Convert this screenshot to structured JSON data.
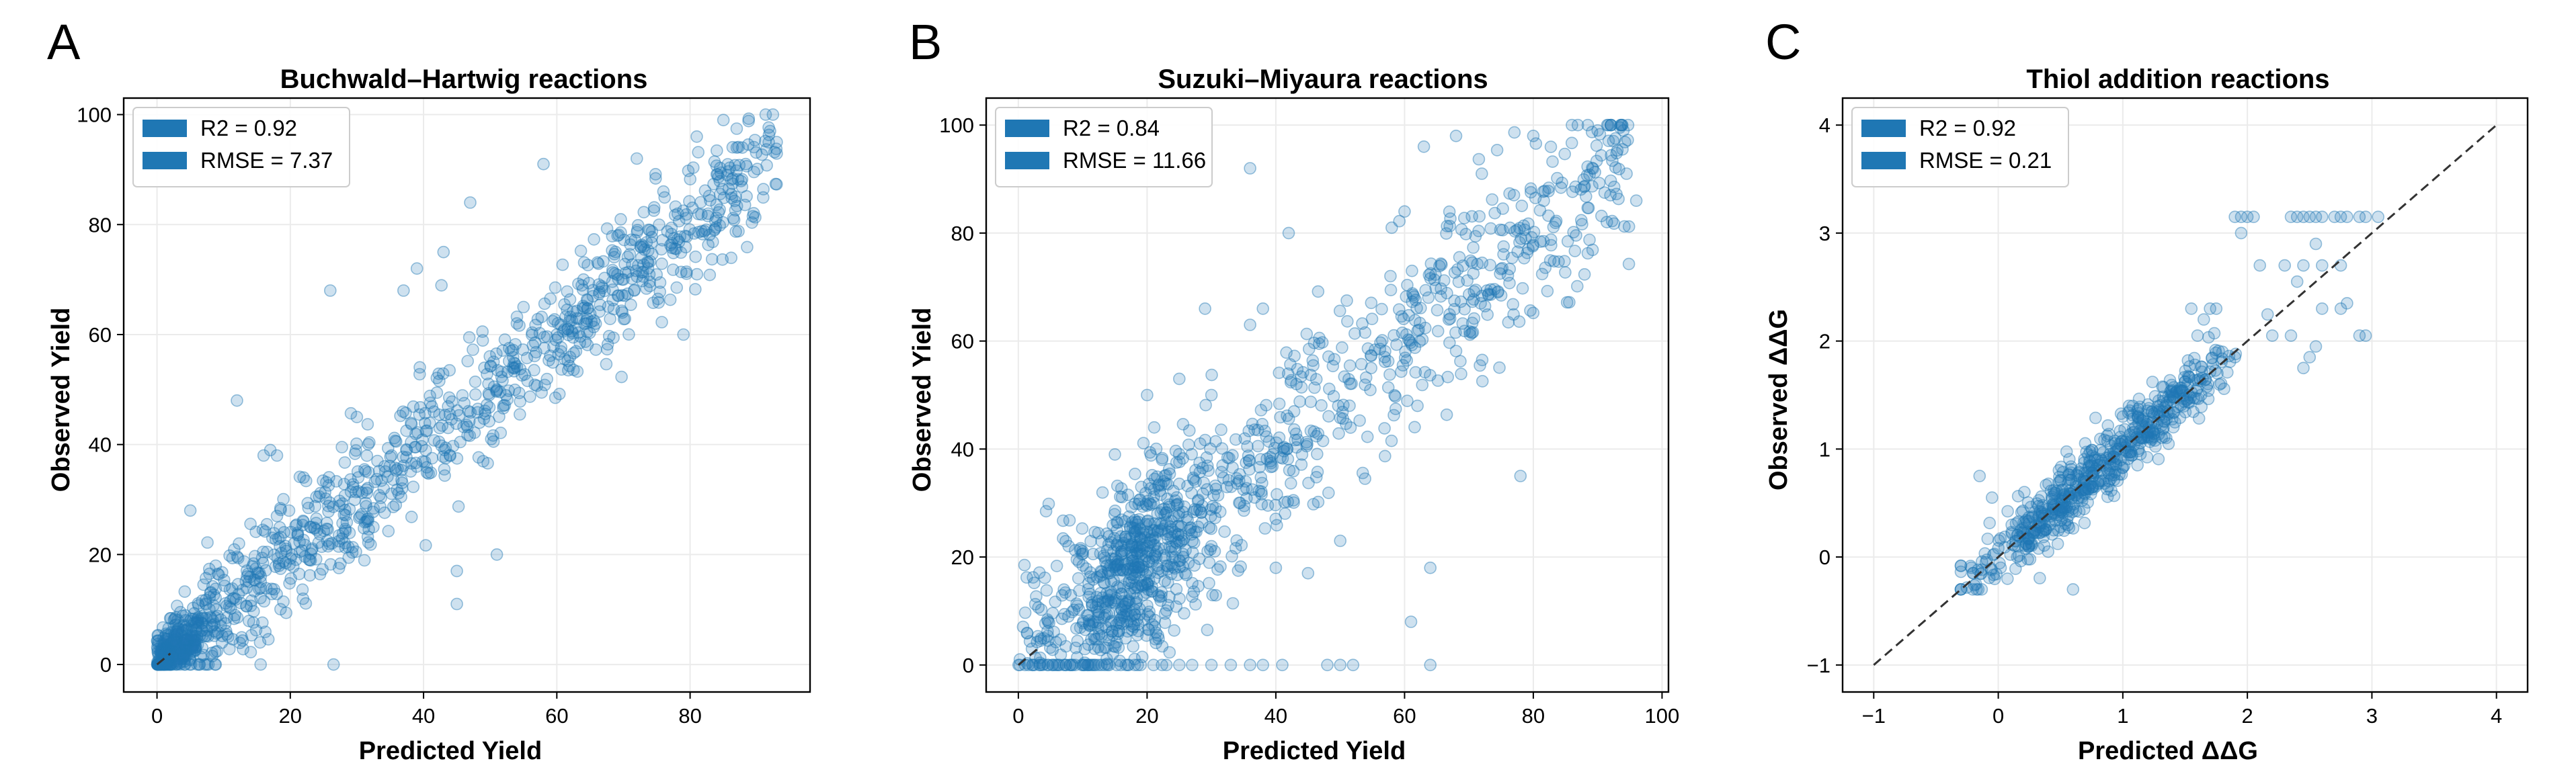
{
  "chart_data": [
    {
      "panel_label": "A",
      "type": "scatter",
      "title": "Buchwald–Hartwig reactions",
      "xlabel": "Predicted Yield",
      "ylabel": "Observed Yield",
      "xlim": [
        -5,
        98
      ],
      "ylim": [
        -5,
        103
      ],
      "xticks": [
        0,
        20,
        40,
        60,
        80
      ],
      "yticks": [
        0,
        20,
        40,
        60,
        80,
        100
      ],
      "grid": true,
      "legend_position": "top-left",
      "legend": [
        "R2 = 0.92",
        "RMSE = 7.37"
      ],
      "diagonal_line": {
        "from": [
          0,
          0
        ],
        "to": [
          2,
          2
        ],
        "style": "dashed"
      },
      "series": [
        {
          "color": "#1f77b4",
          "generated": {
            "n": 1200,
            "x_range": [
              0,
              93
            ],
            "y_range": [
              0,
              100
            ],
            "noise_sd": 7.37,
            "x_mode": "bh"
          },
          "points": [
            [
              1.5,
              0
            ],
            [
              2.5,
              0.5
            ],
            [
              3,
              0
            ],
            [
              4,
              1.5
            ],
            [
              5,
              0.8
            ],
            [
              3.5,
              2.5
            ],
            [
              26.5,
              0
            ],
            [
              8,
              13
            ],
            [
              12,
              48
            ],
            [
              17,
              39
            ],
            [
              26,
              68
            ],
            [
              37,
              68
            ],
            [
              39,
              72
            ],
            [
              43,
              75
            ],
            [
              47,
              84
            ],
            [
              55,
              65
            ],
            [
              58,
              91
            ],
            [
              51,
              20
            ],
            [
              45,
              17
            ],
            [
              64,
              70
            ],
            [
              72,
              92
            ],
            [
              76,
              86
            ],
            [
              81,
              96
            ],
            [
              85,
              99
            ],
            [
              87,
              94
            ],
            [
              92,
              97
            ],
            [
              93,
              95
            ],
            [
              79,
              60
            ],
            [
              45,
              11
            ],
            [
              51,
              50
            ],
            [
              60,
              60
            ],
            [
              70,
              70
            ],
            [
              30,
              45
            ],
            [
              22,
              34
            ],
            [
              18,
              38
            ],
            [
              16,
              38
            ],
            [
              5,
              28
            ]
          ]
        }
      ]
    },
    {
      "panel_label": "B",
      "type": "scatter",
      "title": "Suzuki–Miyaura reactions",
      "xlabel": "Predicted Yield",
      "ylabel": "Observed Yield",
      "xlim": [
        -5,
        101
      ],
      "ylim": [
        -5,
        105
      ],
      "xticks": [
        0,
        20,
        40,
        60,
        80,
        100
      ],
      "yticks": [
        0,
        20,
        40,
        60,
        80,
        100
      ],
      "grid": true,
      "legend_position": "top-left",
      "legend": [
        "R2 = 0.84",
        "RMSE = 11.66"
      ],
      "diagonal_line": {
        "from": [
          0,
          0
        ],
        "to": [
          3,
          3
        ],
        "style": "dashed"
      },
      "series": [
        {
          "color": "#1f77b4",
          "generated": {
            "n": 1200,
            "x_range": [
              0,
              95
            ],
            "y_range": [
              0,
              100
            ],
            "noise_sd": 11.66,
            "x_mode": "sm"
          },
          "points": [
            [
              6,
              0
            ],
            [
              8,
              0
            ],
            [
              12,
              0
            ],
            [
              17,
              0
            ],
            [
              19,
              0
            ],
            [
              21,
              0
            ],
            [
              23,
              0
            ],
            [
              25,
              0
            ],
            [
              27,
              0
            ],
            [
              30,
              0
            ],
            [
              33,
              0
            ],
            [
              36,
              0
            ],
            [
              38,
              0
            ],
            [
              41,
              0
            ],
            [
              48,
              0
            ],
            [
              50,
              0
            ],
            [
              52,
              0
            ],
            [
              64,
              0
            ],
            [
              36,
              92
            ],
            [
              42,
              80
            ],
            [
              58,
              81
            ],
            [
              60,
              84
            ],
            [
              63,
              96
            ],
            [
              68,
              98
            ],
            [
              72,
              91
            ],
            [
              80,
              98
            ],
            [
              86,
              100
            ],
            [
              90,
              99
            ],
            [
              94,
              99
            ],
            [
              96,
              86
            ],
            [
              78,
              35
            ],
            [
              64,
              18
            ],
            [
              61,
              8
            ],
            [
              50,
              23
            ],
            [
              45,
              17
            ],
            [
              62,
              48
            ],
            [
              40,
              18
            ],
            [
              30,
              50
            ],
            [
              20,
              50
            ],
            [
              15,
              39
            ],
            [
              25,
              53
            ],
            [
              29,
              66
            ],
            [
              36,
              63
            ],
            [
              38,
              66
            ],
            [
              21,
              30
            ],
            [
              30,
              22
            ]
          ]
        }
      ]
    },
    {
      "panel_label": "C",
      "type": "scatter",
      "title": "Thiol addition reactions",
      "xlabel": "Predicted ΔΔG",
      "ylabel": "Observed ΔΔG",
      "xlim": [
        -1.25,
        4.25
      ],
      "ylim": [
        -1.25,
        4.25
      ],
      "xticks": [
        -1,
        0,
        1,
        2,
        3,
        4
      ],
      "yticks": [
        -1,
        0,
        1,
        2,
        3,
        4
      ],
      "grid": true,
      "legend_position": "top-left",
      "legend": [
        "R2 = 0.92",
        "RMSE = 0.21"
      ],
      "diagonal_line": {
        "from": [
          -1,
          -1
        ],
        "to": [
          4,
          4
        ],
        "style": "dashed"
      },
      "series": [
        {
          "color": "#1f77b4",
          "generated": {
            "n": 600,
            "x_range": [
              -0.3,
              3.1
            ],
            "y_range": [
              -0.3,
              3.15
            ],
            "noise_sd": 0.21,
            "x_mode": "ta"
          },
          "points": [
            [
              -0.2,
              -0.15
            ],
            [
              -0.1,
              -0.05
            ],
            [
              -0.15,
              0.75
            ],
            [
              -0.05,
              0.55
            ],
            [
              0.6,
              -0.3
            ],
            [
              0.4,
              0.05
            ],
            [
              1.6,
              2.05
            ],
            [
              1.55,
              2.3
            ],
            [
              1.65,
              2.2
            ],
            [
              1.7,
              2.3
            ],
            [
              1.75,
              2.3
            ],
            [
              1.8,
              1.9
            ],
            [
              1.9,
              1.85
            ],
            [
              2.45,
              1.75
            ],
            [
              2.5,
              1.85
            ],
            [
              2.55,
              1.95
            ],
            [
              2.2,
              2.05
            ],
            [
              2.35,
              2.05
            ],
            [
              2.9,
              2.05
            ],
            [
              2.95,
              2.05
            ],
            [
              2.6,
              2.3
            ],
            [
              2.75,
              2.3
            ],
            [
              2.8,
              2.35
            ],
            [
              2.4,
              2.55
            ],
            [
              2.45,
              2.7
            ],
            [
              2.6,
              2.7
            ],
            [
              2.75,
              2.7
            ],
            [
              2.1,
              2.7
            ],
            [
              2.3,
              2.7
            ],
            [
              2.55,
              2.9
            ],
            [
              2.35,
              3.15
            ],
            [
              2.4,
              3.15
            ],
            [
              2.45,
              3.15
            ],
            [
              2.5,
              3.15
            ],
            [
              2.55,
              3.15
            ],
            [
              2.6,
              3.15
            ],
            [
              2.7,
              3.15
            ],
            [
              2.75,
              3.15
            ],
            [
              2.8,
              3.15
            ],
            [
              2.9,
              3.15
            ],
            [
              2.95,
              3.15
            ],
            [
              3.05,
              3.15
            ],
            [
              1.9,
              3.15
            ],
            [
              1.95,
              3.15
            ],
            [
              2.0,
              3.15
            ],
            [
              2.05,
              3.15
            ],
            [
              1.95,
              3.0
            ],
            [
              1.0,
              1.3
            ],
            [
              1.05,
              1.4
            ],
            [
              1.1,
              1.2
            ],
            [
              1.15,
              1.1
            ]
          ]
        }
      ]
    }
  ]
}
